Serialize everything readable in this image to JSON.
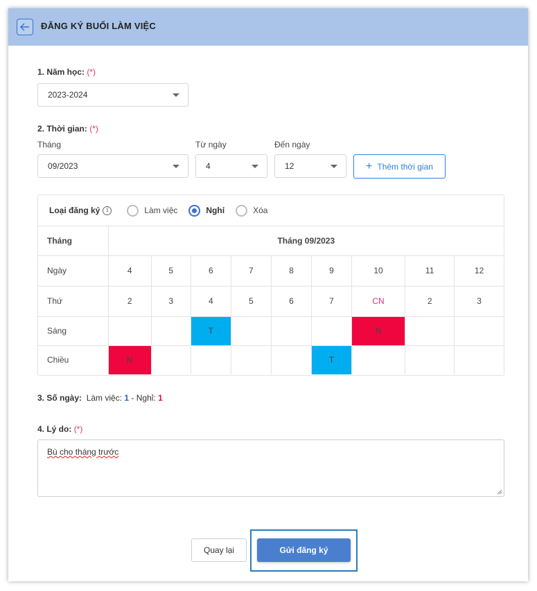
{
  "header": {
    "title": "ĐĂNG KÝ BUỔI LÀM VIỆC",
    "back_icon": "arrow-left-icon"
  },
  "school_year": {
    "label": "1. Năm học:",
    "required": "(*)",
    "value": "2023-2024"
  },
  "time": {
    "label": "2. Thời gian:",
    "required": "(*)",
    "month_label": "Tháng",
    "month_value": "09/2023",
    "from_label": "Từ ngày",
    "from_value": "4",
    "to_label": "Đến ngày",
    "to_value": "12",
    "add_button": "Thêm thời gian"
  },
  "reg_type": {
    "label": "Loại đăng ký",
    "options": [
      "Làm việc",
      "Nghỉ",
      "Xóa"
    ],
    "selected": "Nghỉ"
  },
  "schedule": {
    "month_label": "Tháng",
    "month_title": "Tháng 09/2023",
    "day_label": "Ngày",
    "weekday_label": "Thứ",
    "morning_label": "Sáng",
    "afternoon_label": "Chiều",
    "days": [
      "4",
      "5",
      "6",
      "7",
      "8",
      "9",
      "10",
      "11",
      "12"
    ],
    "weekdays": [
      "2",
      "3",
      "4",
      "5",
      "6",
      "7",
      "CN",
      "2",
      "3"
    ],
    "morning": [
      "",
      "",
      "T",
      "",
      "",
      "",
      "N",
      "",
      ""
    ],
    "afternoon": [
      "N",
      "",
      "",
      "",
      "",
      "T",
      "",
      "",
      ""
    ],
    "colors": {
      "T": "#00aeef",
      "N": "#f0063f",
      "CN": "#e8317a"
    }
  },
  "count": {
    "label": "3. Số ngày:",
    "work_label": "Làm việc:",
    "work_value": "1",
    "separator": "-",
    "off_label": "Nghỉ:",
    "off_value": "1"
  },
  "reason": {
    "label": "4. Lý do:",
    "required": "(*)",
    "value": "Bù cho tháng trước"
  },
  "actions": {
    "back": "Quay lại",
    "submit": "Gửi đăng ký"
  }
}
